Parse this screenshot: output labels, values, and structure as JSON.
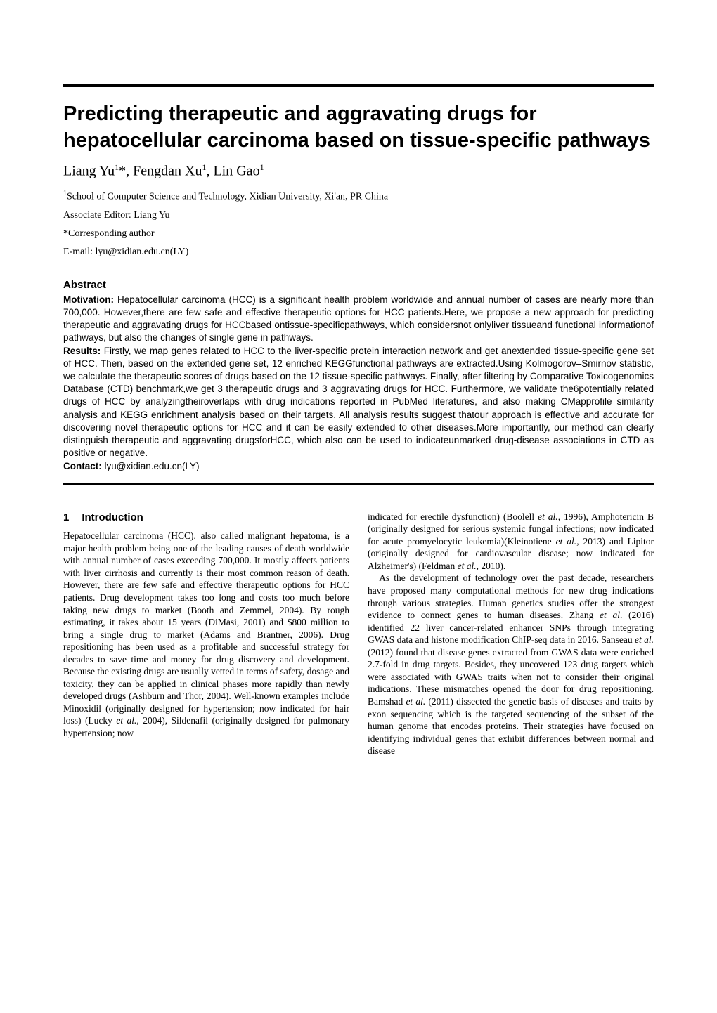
{
  "title": "Predicting therapeutic and aggravating drugs for hepatocellular carcinoma based on tissue-specific pathways",
  "authors_html": "Liang Yu<sup>1</sup>*, Fengdan Xu<sup>1</sup>, Lin Gao<sup>1</sup>",
  "affiliation_html": "<sup>1</sup>School of Computer Science and Technology, Xidian University, Xi'an, PR China",
  "editor_line": "Associate Editor: Liang Yu",
  "corresponding_line": "*Corresponding author",
  "email_line": "E-mail: lyu@xidian.edu.cn(LY)",
  "abstract_heading": "Abstract",
  "abstract": {
    "motivation_label": "Motivation:",
    "motivation_text": " Hepatocellular carcinoma (HCC) is a significant health problem worldwide and annual number of cases are nearly more than 700,000. However,there are few safe and effective therapeutic options for HCC patients.Here, we propose a new approach for predicting therapeutic and aggravating drugs for HCCbased ontissue-specificpathways, which considersnot onlyliver tissueand functional informationof pathways, but also the changes of single gene in pathways.",
    "results_label": "Results:",
    "results_text": " Firstly, we map genes related to HCC to the liver-specific protein interaction network and get anextended tissue-specific gene set of HCC. Then, based on the extended gene set, 12 enriched KEGGfunctional pathways are extracted.Using Kolmogorov–Smirnov statistic, we calculate the therapeutic scores of drugs based on the 12 tissue-specific pathways. Finally, after filtering by Comparative Toxicogenomics Database (CTD) benchmark,we get 3 therapeutic drugs and 3 aggravating drugs for HCC. Furthermore, we validate the6potentially related drugs of HCC by analyzingtheiroverlaps with drug indications reported in PubMed literatures, and also making CMapprofile similarity analysis and KEGG enrichment analysis based on their targets. All analysis results suggest thatour approach is effective and accurate for discovering novel therapeutic options for HCC and it can be easily extended to other diseases.More importantly, our method can clearly distinguish therapeutic and aggravating drugsforHCC, which also can be used to indicateunmarked drug-disease associations in CTD as positive or negative.",
    "contact_label": "Contact:",
    "contact_text": " lyu@xidian.edu.cn(LY)"
  },
  "section1": {
    "number": "1",
    "title": "Introduction",
    "col1_html": "Hepatocellular carcinoma (HCC), also called malignant hepatoma, is a major health problem being one of the leading causes of death worldwide with annual number of cases exceeding 700,000. It mostly affects patients with liver cirrhosis and currently is their most common reason of death. However, there are few safe and effective therapeutic options for HCC patients. Drug development takes too long and costs too much before taking new drugs to market (Booth and Zemmel, 2004). By rough estimating, it takes about 15 years (DiMasi, 2001) and $800 million to bring a single drug to market (Adams and Brantner, 2006). Drug repositioning has been used as a profitable and successful strategy for decades to save time and money for drug discovery and development. Because the existing drugs are usually vetted in terms of safety, dosage and toxicity, they can be applied in clinical phases more rapidly than newly developed drugs (Ashburn and Thor, 2004). Well-known examples include Minoxidil (originally designed for hypertension; now indicated for hair loss) (Lucky <span class=\"italic\">et al.</span>, 2004), Sildenafil (originally designed for pulmonary hypertension; now",
    "col2_p1_html": "indicated for erectile dysfunction) (Boolell <span class=\"italic\">et al.</span>, 1996), Amphotericin B (originally designed for serious systemic fungal infections; now indicated for acute promyelocytic leukemia)(Kleinotiene <span class=\"italic\">et al.</span>, 2013) and Lipitor (originally designed for cardiovascular disease; now indicated for Alzheimer's) (Feldman <span class=\"italic\">et al.</span>, 2010).",
    "col2_p2_html": "As the development of technology over the past decade, researchers have proposed many computational methods for new drug indications through various strategies. Human genetics studies offer the strongest evidence to connect genes to human diseases. Zhang <span class=\"italic\">et al</span>. (2016) identified 22 liver cancer-related enhancer SNPs through integrating GWAS data and histone modification ChIP-seq data in 2016. Sanseau <span class=\"italic\">et al.</span> (2012) found that disease genes extracted from GWAS data were enriched 2.7-fold in drug targets. Besides, they uncovered 123 drug targets which were associated with GWAS traits when not to consider their original indications. These mismatches opened the door for drug repositioning. Bamshad <span class=\"italic\">et al.</span> (2011) dissected the genetic basis of diseases and traits by exon sequencing which is the targeted sequencing of the subset of the human genome that encodes proteins. Their strategies have focused on identifying individual genes that exhibit differences between normal and disease"
  }
}
